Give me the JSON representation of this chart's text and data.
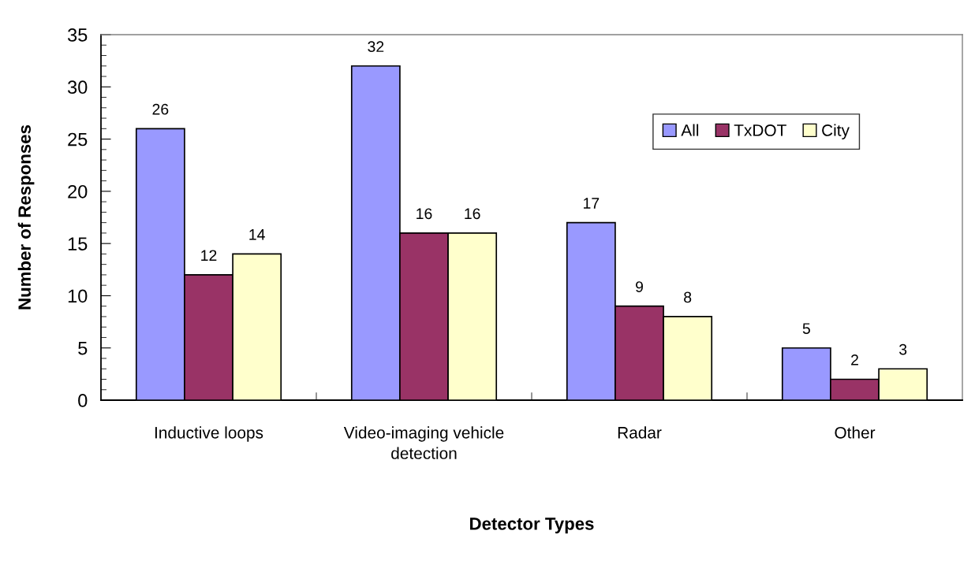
{
  "chart_data": {
    "type": "bar",
    "xlabel": "Detector Types",
    "ylabel": "Number of Responses",
    "categories": [
      "Inductive loops",
      "Video-imaging vehicle\ndetection",
      "Radar",
      "Other"
    ],
    "series": [
      {
        "name": "All",
        "color": "#9999ff",
        "values": [
          26,
          32,
          17,
          5
        ]
      },
      {
        "name": "TxDOT",
        "color": "#993366",
        "values": [
          12,
          16,
          9,
          2
        ]
      },
      {
        "name": "City",
        "color": "#ffffcc",
        "values": [
          14,
          16,
          8,
          3
        ]
      }
    ],
    "ylim": [
      0,
      35
    ],
    "yticks": [
      0,
      5,
      10,
      15,
      20,
      25,
      30,
      35
    ],
    "data_labels": true,
    "legend": "top right",
    "grid": false
  }
}
